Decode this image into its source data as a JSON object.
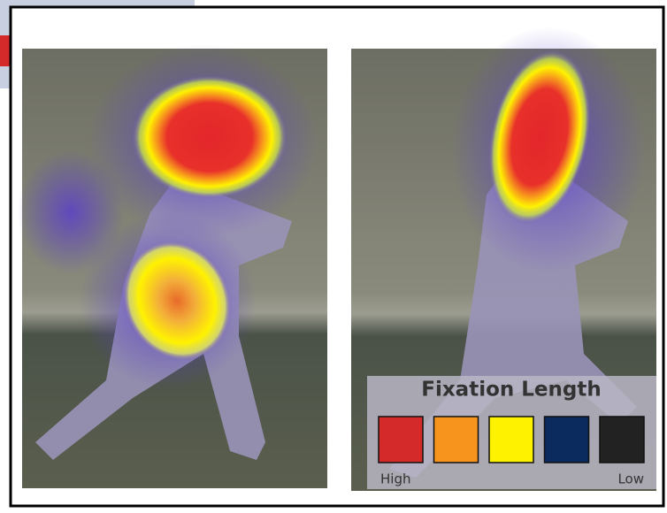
{
  "legend": {
    "title": "Fixation Length",
    "high_label": "High",
    "low_label": "Low",
    "swatches": [
      "#d42a2a",
      "#f7941d",
      "#fff200",
      "#0b2a5e",
      "#222222"
    ]
  }
}
